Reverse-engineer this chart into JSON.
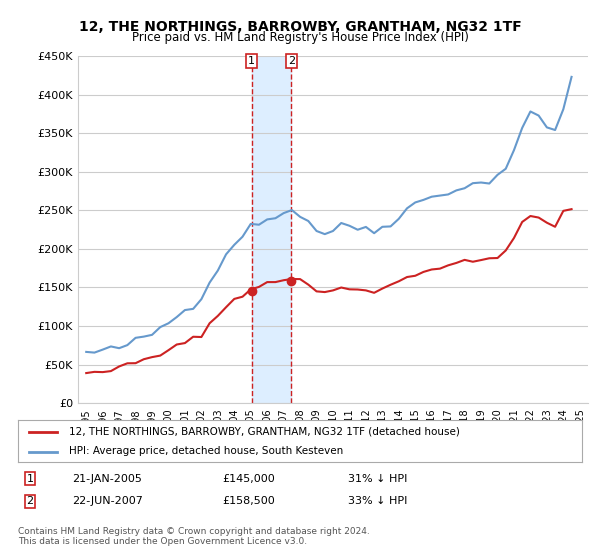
{
  "title": "12, THE NORTHINGS, BARROWBY, GRANTHAM, NG32 1TF",
  "subtitle": "Price paid vs. HM Land Registry's House Price Index (HPI)",
  "legend_line1": "12, THE NORTHINGS, BARROWBY, GRANTHAM, NG32 1TF (detached house)",
  "legend_line2": "HPI: Average price, detached house, South Kesteven",
  "footnote": "Contains HM Land Registry data © Crown copyright and database right 2024.\nThis data is licensed under the Open Government Licence v3.0.",
  "sale1_label": "1",
  "sale1_date": "21-JAN-2005",
  "sale1_price": "£145,000",
  "sale1_hpi": "31% ↓ HPI",
  "sale2_label": "2",
  "sale2_date": "22-JUN-2007",
  "sale2_price": "£158,500",
  "sale2_hpi": "33% ↓ HPI",
  "sale1_x": 2005.05,
  "sale1_y": 145000,
  "sale2_x": 2007.47,
  "sale2_y": 158500,
  "ylim": [
    0,
    450000
  ],
  "xlim_start": 1994.5,
  "xlim_end": 2025.5,
  "hpi_color": "#6699cc",
  "price_color": "#cc2222",
  "vline_color": "#cc2222",
  "shade_color": "#ddeeff",
  "background_color": "#ffffff",
  "grid_color": "#cccccc"
}
